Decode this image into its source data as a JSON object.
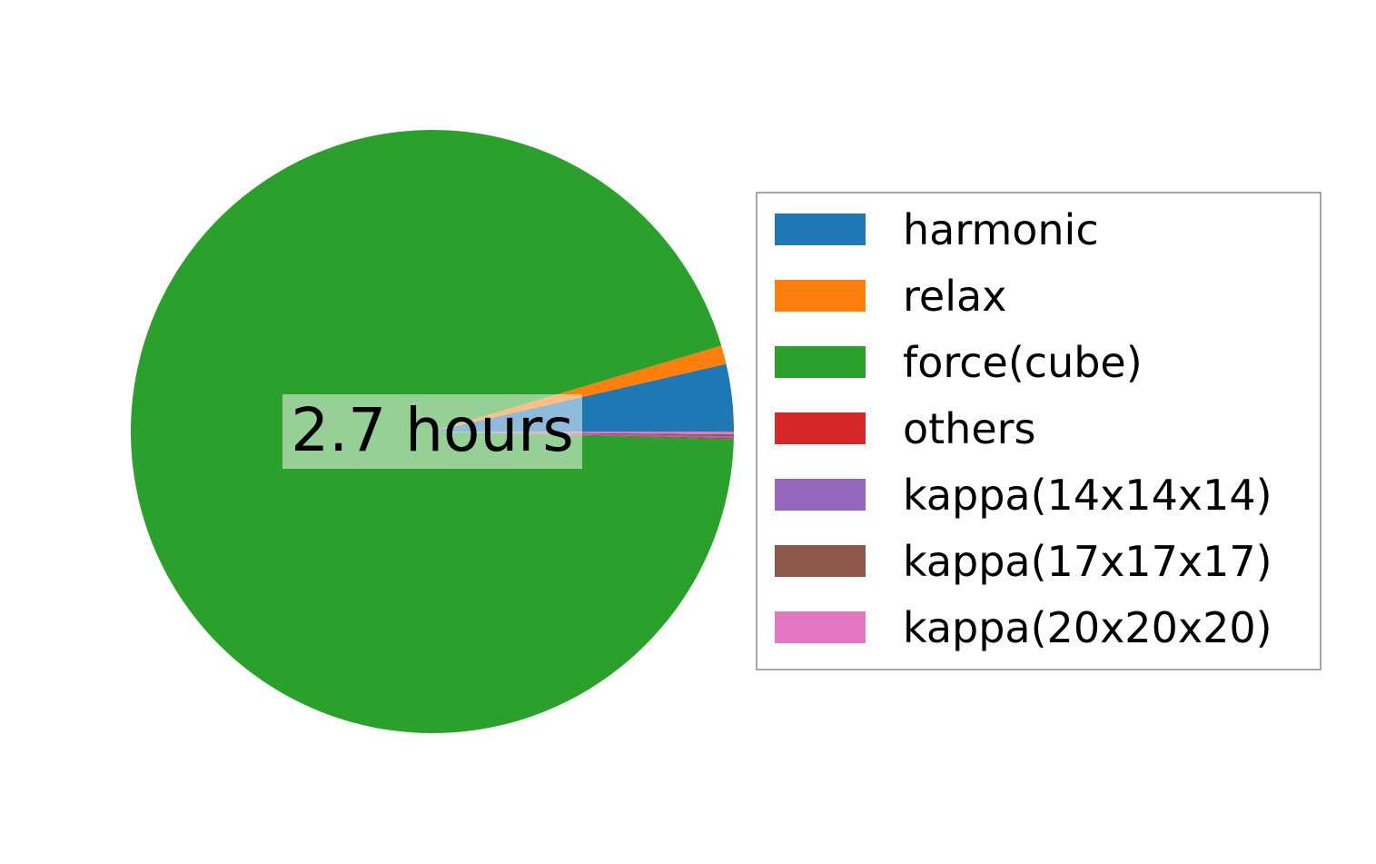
{
  "chart_data": {
    "type": "pie",
    "center_label": "2.7 hours",
    "slices": [
      {
        "label": "harmonic",
        "value": 3.6,
        "color": "#1f77b4"
      },
      {
        "label": "relax",
        "value": 1.0,
        "color": "#ff7f0e"
      },
      {
        "label": "force(cube)",
        "value": 95.0,
        "color": "#2ca02c"
      },
      {
        "label": "others",
        "value": 0.05,
        "color": "#d62728"
      },
      {
        "label": "kappa(14x14x14)",
        "value": 0.1,
        "color": "#9467bd"
      },
      {
        "label": "kappa(17x17x17)",
        "value": 0.1,
        "color": "#8c564b"
      },
      {
        "label": "kappa(20x20x20)",
        "value": 0.15,
        "color": "#e377c2"
      }
    ],
    "start_angle_deg": 0,
    "direction": "counterclockwise",
    "legend_position": "right"
  }
}
